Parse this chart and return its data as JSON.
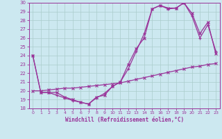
{
  "xlabel": "Windchill (Refroidissement éolien,°C)",
  "bg_color": "#cce8f0",
  "line_color": "#993399",
  "grid_color": "#aacccc",
  "xlim": [
    -0.5,
    23.5
  ],
  "ylim": [
    18,
    30
  ],
  "xticks": [
    0,
    1,
    2,
    3,
    4,
    5,
    6,
    7,
    8,
    9,
    10,
    11,
    12,
    13,
    14,
    15,
    16,
    17,
    18,
    19,
    20,
    21,
    22,
    23
  ],
  "yticks": [
    18,
    19,
    20,
    21,
    22,
    23,
    24,
    25,
    26,
    27,
    28,
    29,
    30
  ],
  "line1_x": [
    0,
    1,
    2,
    3,
    4,
    5,
    6,
    7,
    8,
    9,
    10,
    11,
    12,
    13,
    14,
    15,
    16,
    17,
    18,
    19,
    20,
    21,
    22,
    23
  ],
  "line1_y": [
    24.0,
    19.8,
    19.8,
    19.8,
    19.3,
    19.0,
    18.7,
    18.5,
    19.3,
    19.5,
    20.5,
    21.0,
    23.0,
    24.8,
    26.0,
    29.3,
    29.7,
    29.4,
    29.4,
    30.0,
    28.8,
    26.5,
    27.8,
    24.2
  ],
  "line2_x": [
    0,
    1,
    2,
    3,
    4,
    5,
    6,
    7,
    8,
    9,
    10,
    11,
    12,
    13,
    14,
    15,
    16,
    17,
    18,
    19,
    20,
    21,
    22,
    23
  ],
  "line2_y": [
    24.0,
    19.8,
    19.8,
    19.5,
    19.2,
    18.9,
    18.7,
    18.5,
    19.2,
    19.7,
    20.5,
    21.0,
    22.5,
    24.5,
    26.5,
    29.3,
    29.7,
    29.3,
    29.4,
    30.0,
    28.5,
    26.0,
    27.5,
    24.5
  ],
  "line3_x": [
    0,
    1,
    2,
    3,
    4,
    5,
    6,
    7,
    8,
    9,
    10,
    11,
    12,
    13,
    14,
    15,
    16,
    17,
    18,
    19,
    20,
    21,
    22,
    23
  ],
  "line3_y": [
    20.0,
    20.0,
    20.1,
    20.2,
    20.3,
    20.3,
    20.4,
    20.5,
    20.6,
    20.7,
    20.8,
    20.9,
    21.1,
    21.3,
    21.5,
    21.7,
    21.9,
    22.1,
    22.3,
    22.5,
    22.7,
    22.8,
    23.0,
    23.1
  ]
}
